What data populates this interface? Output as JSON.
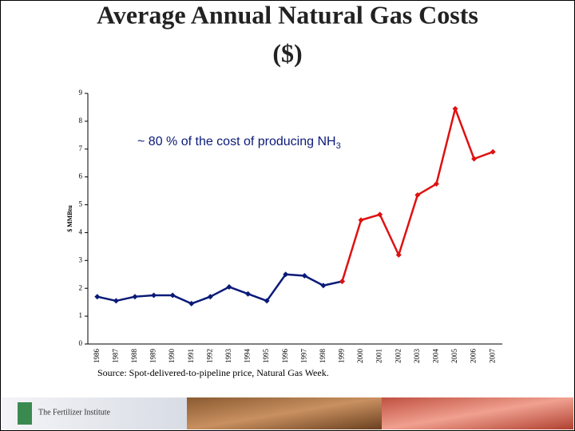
{
  "chart_data": {
    "type": "line",
    "title": "Average Annual Natural Gas Costs",
    "subtitle": "($)",
    "y_label": "$ MMBtu",
    "annotation": {
      "text": "~ 80 % of the cost of producing NH",
      "subscript": "3"
    },
    "source": "Source: Spot-delivered-to-pipeline price, Natural Gas Week.",
    "categories": [
      "1986",
      "1987",
      "1988",
      "1989",
      "1990",
      "1991",
      "1992",
      "1993",
      "1994",
      "1995",
      "1996",
      "1997",
      "1998",
      "1999",
      "2000",
      "2001",
      "2002",
      "2003",
      "2004",
      "2005",
      "2006",
      "2007"
    ],
    "series": [
      {
        "color": "#0a1a78",
        "values": [
          1.7,
          1.55,
          1.7,
          1.75,
          1.75,
          1.45,
          1.7,
          2.05,
          1.8,
          1.55,
          2.5,
          2.45,
          2.1,
          2.25,
          null,
          null,
          null,
          null,
          null,
          null,
          null,
          null
        ]
      },
      {
        "color": "#e01010",
        "values": [
          null,
          null,
          null,
          null,
          null,
          null,
          null,
          null,
          null,
          null,
          null,
          null,
          null,
          2.25,
          4.45,
          4.65,
          3.2,
          5.35,
          5.75,
          8.45,
          6.65,
          6.9
        ]
      }
    ],
    "ylim": [
      0,
      9
    ],
    "yticks": [
      0,
      1,
      2,
      3,
      4,
      5,
      6,
      7,
      8,
      9
    ],
    "grid": false
  },
  "footer": {
    "logo_text": "The Fertilizer Institute"
  }
}
